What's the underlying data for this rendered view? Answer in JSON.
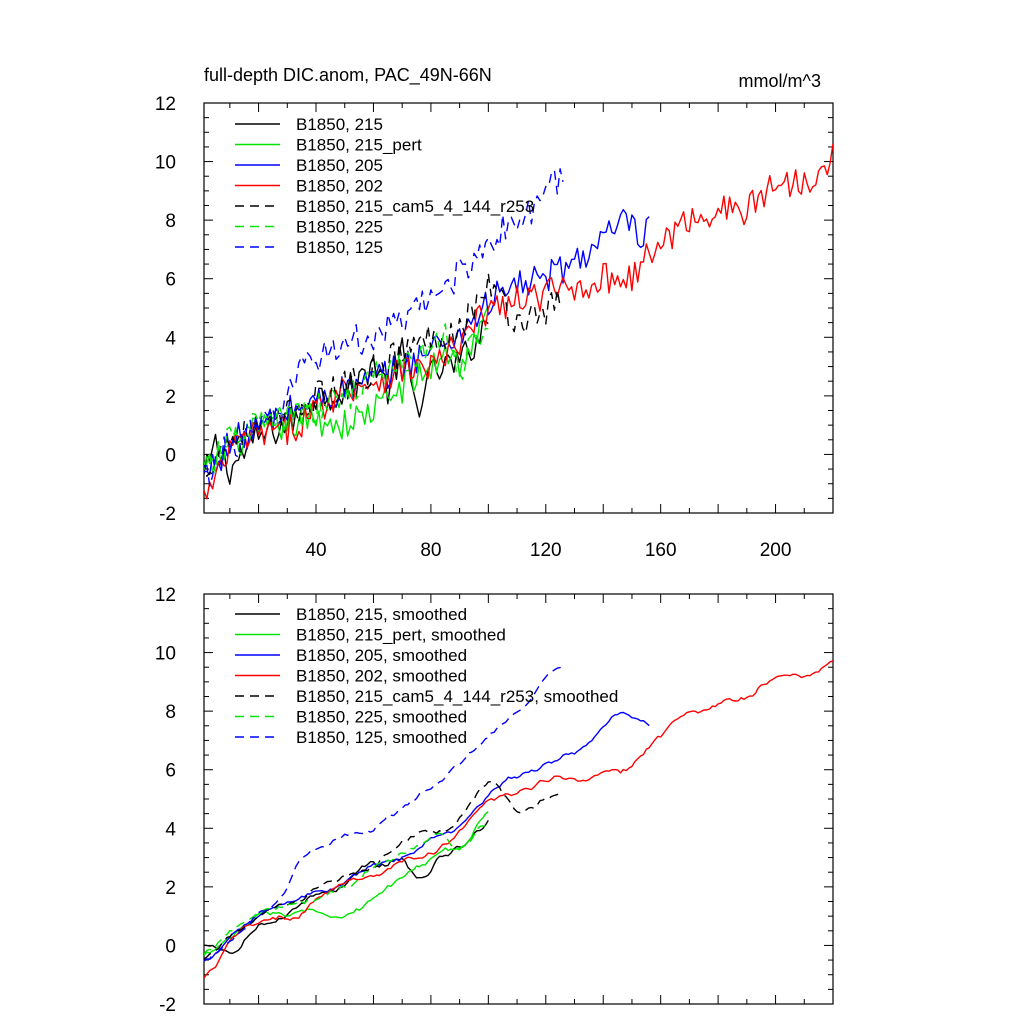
{
  "figure": {
    "title_left": "full-depth DIC.anom, PAC_49N-66N",
    "title_right": "mmol/m^3"
  },
  "chart_data": [
    {
      "type": "line",
      "title": "full-depth DIC.anom, PAC_49N-66N",
      "units": "mmol/m^3",
      "xlim": [
        1,
        220
      ],
      "ylim": [
        -2,
        12
      ],
      "xticks": [
        40,
        80,
        120,
        160,
        200
      ],
      "xticklabels": [
        "40",
        "80",
        "120",
        "160",
        "200"
      ],
      "yticks": [
        -2,
        0,
        2,
        4,
        6,
        8,
        10,
        12
      ],
      "yticklabels": [
        "-2",
        "0",
        "2",
        "4",
        "6",
        "8",
        "10",
        "12"
      ],
      "legend_position": "top-left",
      "series": [
        {
          "name": "B1850, 215",
          "color": "#000000",
          "dash": "solid",
          "end": 100,
          "anchors": [
            [
              1,
              -0.8
            ],
            [
              5,
              0.3
            ],
            [
              10,
              -0.5
            ],
            [
              20,
              0.6
            ],
            [
              30,
              1.0
            ],
            [
              40,
              2.0
            ],
            [
              50,
              2.1
            ],
            [
              55,
              2.5
            ],
            [
              60,
              3.2
            ],
            [
              65,
              2.2
            ],
            [
              70,
              3.5
            ],
            [
              75,
              1.6
            ],
            [
              80,
              2.7
            ],
            [
              85,
              3.0
            ],
            [
              90,
              3.1
            ],
            [
              95,
              3.8
            ],
            [
              100,
              4.6
            ]
          ]
        },
        {
          "name": "B1850, 215_pert",
          "color": "#00e600",
          "dash": "solid",
          "end": 100,
          "anchors": [
            [
              1,
              -0.7
            ],
            [
              10,
              0.3
            ],
            [
              20,
              0.8
            ],
            [
              30,
              1.0
            ],
            [
              40,
              1.2
            ],
            [
              50,
              1.0
            ],
            [
              60,
              1.5
            ],
            [
              70,
              2.3
            ],
            [
              80,
              2.9
            ],
            [
              85,
              3.6
            ],
            [
              90,
              3.1
            ],
            [
              95,
              3.8
            ],
            [
              100,
              4.8
            ]
          ]
        },
        {
          "name": "B1850, 205",
          "color": "#0000ff",
          "dash": "solid",
          "end": 156,
          "anchors": [
            [
              1,
              -0.8
            ],
            [
              10,
              0.4
            ],
            [
              20,
              0.9
            ],
            [
              30,
              1.5
            ],
            [
              40,
              1.8
            ],
            [
              50,
              2.2
            ],
            [
              60,
              2.5
            ],
            [
              70,
              3.0
            ],
            [
              80,
              3.6
            ],
            [
              90,
              4.1
            ],
            [
              100,
              5.2
            ],
            [
              110,
              5.8
            ],
            [
              120,
              6.0
            ],
            [
              130,
              6.6
            ],
            [
              140,
              7.3
            ],
            [
              145,
              7.8
            ],
            [
              150,
              7.9
            ],
            [
              153,
              7.1
            ],
            [
              156,
              7.7
            ]
          ]
        },
        {
          "name": "B1850, 202",
          "color": "#ff0000",
          "dash": "solid",
          "end": 220,
          "anchors": [
            [
              1,
              -1.5
            ],
            [
              5,
              -1.0
            ],
            [
              10,
              0.2
            ],
            [
              20,
              0.7
            ],
            [
              30,
              0.8
            ],
            [
              40,
              1.5
            ],
            [
              50,
              2.3
            ],
            [
              60,
              2.5
            ],
            [
              70,
              2.9
            ],
            [
              80,
              3.0
            ],
            [
              90,
              3.7
            ],
            [
              100,
              5.0
            ],
            [
              110,
              5.2
            ],
            [
              120,
              5.5
            ],
            [
              130,
              5.7
            ],
            [
              140,
              6.0
            ],
            [
              150,
              6.1
            ],
            [
              160,
              7.2
            ],
            [
              170,
              8.0
            ],
            [
              180,
              8.4
            ],
            [
              190,
              8.3
            ],
            [
              200,
              9.3
            ],
            [
              210,
              9.3
            ],
            [
              220,
              10.3
            ]
          ]
        },
        {
          "name": "B1850, 215_cam5_4_144_r253",
          "color": "#000000",
          "dash": "dashed",
          "end": 125,
          "anchors": [
            [
              1,
              -0.5
            ],
            [
              10,
              0.5
            ],
            [
              20,
              0.8
            ],
            [
              30,
              1.3
            ],
            [
              40,
              2.0
            ],
            [
              50,
              2.3
            ],
            [
              60,
              2.9
            ],
            [
              70,
              3.5
            ],
            [
              80,
              4.0
            ],
            [
              90,
              4.3
            ],
            [
              100,
              5.8
            ],
            [
              105,
              5.2
            ],
            [
              110,
              4.5
            ],
            [
              115,
              4.7
            ],
            [
              120,
              5.0
            ],
            [
              125,
              5.2
            ]
          ]
        },
        {
          "name": "B1850, 225",
          "color": "#00e600",
          "dash": "dashed",
          "end": 100,
          "anchors": [
            [
              1,
              -0.7
            ],
            [
              10,
              0.5
            ],
            [
              20,
              1.1
            ],
            [
              30,
              1.2
            ],
            [
              40,
              1.5
            ],
            [
              50,
              2.0
            ],
            [
              60,
              2.6
            ],
            [
              70,
              3.1
            ],
            [
              80,
              3.6
            ],
            [
              85,
              4.1
            ],
            [
              90,
              2.9
            ],
            [
              95,
              3.8
            ],
            [
              100,
              4.6
            ]
          ]
        },
        {
          "name": "B1850, 125",
          "color": "#0000ff",
          "dash": "dashed",
          "end": 126,
          "anchors": [
            [
              1,
              -0.8
            ],
            [
              10,
              0.3
            ],
            [
              20,
              0.8
            ],
            [
              30,
              1.8
            ],
            [
              35,
              3.2
            ],
            [
              40,
              3.3
            ],
            [
              50,
              3.8
            ],
            [
              60,
              4.0
            ],
            [
              70,
              4.5
            ],
            [
              80,
              5.3
            ],
            [
              90,
              6.2
            ],
            [
              100,
              7.3
            ],
            [
              110,
              8.0
            ],
            [
              115,
              8.2
            ],
            [
              120,
              9.2
            ],
            [
              126,
              9.4
            ]
          ]
        }
      ]
    },
    {
      "type": "line",
      "xlim": [
        1,
        220
      ],
      "ylim": [
        -2,
        12
      ],
      "yticks": [
        -2,
        0,
        2,
        4,
        6,
        8,
        10,
        12
      ],
      "yticklabels": [
        "-2",
        "0",
        "2",
        "4",
        "6",
        "8",
        "10",
        "12"
      ],
      "legend_position": "top-left",
      "series": [
        {
          "name": "B1850, 215, smoothed",
          "color": "#000000",
          "dash": "solid",
          "end": 100,
          "anchors": [
            [
              1,
              -0.8
            ],
            [
              5,
              0.3
            ],
            [
              10,
              -0.5
            ],
            [
              20,
              0.6
            ],
            [
              30,
              1.0
            ],
            [
              40,
              2.0
            ],
            [
              50,
              2.1
            ],
            [
              55,
              2.5
            ],
            [
              60,
              3.2
            ],
            [
              65,
              2.2
            ],
            [
              70,
              3.5
            ],
            [
              75,
              1.6
            ],
            [
              80,
              2.7
            ],
            [
              85,
              3.0
            ],
            [
              90,
              3.1
            ],
            [
              95,
              3.8
            ],
            [
              100,
              4.6
            ]
          ]
        },
        {
          "name": "B1850, 215_pert, smoothed",
          "color": "#00e600",
          "dash": "solid",
          "end": 100,
          "anchors": [
            [
              1,
              -0.7
            ],
            [
              10,
              0.3
            ],
            [
              20,
              0.8
            ],
            [
              30,
              1.0
            ],
            [
              40,
              1.2
            ],
            [
              50,
              1.0
            ],
            [
              60,
              1.5
            ],
            [
              70,
              2.3
            ],
            [
              80,
              2.9
            ],
            [
              85,
              3.6
            ],
            [
              90,
              3.1
            ],
            [
              95,
              3.8
            ],
            [
              100,
              4.8
            ]
          ]
        },
        {
          "name": "B1850, 205, smoothed",
          "color": "#0000ff",
          "dash": "solid",
          "end": 156,
          "anchors": [
            [
              1,
              -0.8
            ],
            [
              10,
              0.4
            ],
            [
              20,
              0.9
            ],
            [
              30,
              1.5
            ],
            [
              40,
              1.8
            ],
            [
              50,
              2.2
            ],
            [
              60,
              2.5
            ],
            [
              70,
              3.0
            ],
            [
              80,
              3.6
            ],
            [
              90,
              4.1
            ],
            [
              100,
              5.2
            ],
            [
              110,
              5.8
            ],
            [
              120,
              6.0
            ],
            [
              130,
              6.6
            ],
            [
              140,
              7.3
            ],
            [
              145,
              7.8
            ],
            [
              150,
              7.9
            ],
            [
              153,
              7.1
            ],
            [
              156,
              7.7
            ]
          ]
        },
        {
          "name": "B1850, 202, smoothed",
          "color": "#ff0000",
          "dash": "solid",
          "end": 220,
          "anchors": [
            [
              1,
              -1.5
            ],
            [
              5,
              -1.0
            ],
            [
              10,
              0.2
            ],
            [
              20,
              0.7
            ],
            [
              30,
              0.8
            ],
            [
              40,
              1.5
            ],
            [
              50,
              2.3
            ],
            [
              60,
              2.5
            ],
            [
              70,
              2.9
            ],
            [
              80,
              3.0
            ],
            [
              90,
              3.7
            ],
            [
              100,
              5.0
            ],
            [
              110,
              5.2
            ],
            [
              120,
              5.5
            ],
            [
              130,
              5.7
            ],
            [
              140,
              6.0
            ],
            [
              150,
              6.1
            ],
            [
              160,
              7.2
            ],
            [
              170,
              8.0
            ],
            [
              180,
              8.4
            ],
            [
              190,
              8.3
            ],
            [
              200,
              9.3
            ],
            [
              210,
              9.3
            ],
            [
              220,
              10.0
            ]
          ]
        },
        {
          "name": "B1850, 215_cam5_4_144_r253, smoothed",
          "color": "#000000",
          "dash": "dashed",
          "end": 125,
          "anchors": [
            [
              1,
              -0.5
            ],
            [
              10,
              0.5
            ],
            [
              20,
              0.8
            ],
            [
              30,
              1.3
            ],
            [
              40,
              2.0
            ],
            [
              50,
              2.3
            ],
            [
              60,
              2.9
            ],
            [
              70,
              3.5
            ],
            [
              80,
              4.0
            ],
            [
              90,
              4.3
            ],
            [
              100,
              5.8
            ],
            [
              105,
              5.2
            ],
            [
              110,
              4.5
            ],
            [
              115,
              4.7
            ],
            [
              120,
              5.0
            ],
            [
              125,
              5.2
            ]
          ]
        },
        {
          "name": "B1850, 225, smoothed",
          "color": "#00e600",
          "dash": "dashed",
          "end": 100,
          "anchors": [
            [
              1,
              -0.7
            ],
            [
              10,
              0.5
            ],
            [
              20,
              1.1
            ],
            [
              30,
              1.2
            ],
            [
              40,
              1.5
            ],
            [
              50,
              2.0
            ],
            [
              60,
              2.6
            ],
            [
              70,
              3.1
            ],
            [
              80,
              3.6
            ],
            [
              85,
              4.1
            ],
            [
              90,
              2.9
            ],
            [
              95,
              3.8
            ],
            [
              100,
              4.6
            ]
          ]
        },
        {
          "name": "B1850, 125, smoothed",
          "color": "#0000ff",
          "dash": "dashed",
          "end": 126,
          "anchors": [
            [
              1,
              -0.8
            ],
            [
              10,
              0.3
            ],
            [
              20,
              0.8
            ],
            [
              30,
              1.8
            ],
            [
              35,
              3.2
            ],
            [
              40,
              3.3
            ],
            [
              50,
              3.8
            ],
            [
              60,
              4.0
            ],
            [
              70,
              4.5
            ],
            [
              80,
              5.3
            ],
            [
              90,
              6.2
            ],
            [
              100,
              7.3
            ],
            [
              110,
              8.0
            ],
            [
              115,
              8.2
            ],
            [
              120,
              9.4
            ],
            [
              126,
              9.4
            ]
          ]
        }
      ]
    }
  ]
}
